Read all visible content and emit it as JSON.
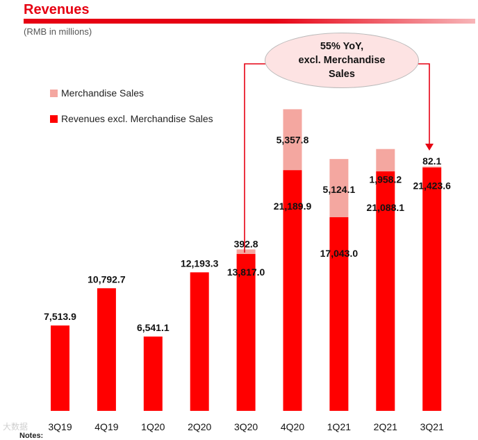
{
  "header": {
    "title": "Revenues",
    "subtitle": "(RMB in millions)"
  },
  "legend": [
    {
      "label": "Merchandise Sales",
      "color": "#f4a7a0"
    },
    {
      "label": "Revenues excl. Merchandise Sales",
      "color": "#ff0000"
    }
  ],
  "callout": {
    "text": "55% YoY,\nexcl. Merchandise\nSales"
  },
  "footer": {
    "notes": "Notes:",
    "watermark": "大数据"
  },
  "chart_data": {
    "type": "bar",
    "stacked": true,
    "title": "Revenues",
    "ylabel": "RMB in millions",
    "categories": [
      "3Q19",
      "4Q19",
      "1Q20",
      "2Q20",
      "3Q20",
      "4Q20",
      "1Q21",
      "2Q21",
      "3Q21"
    ],
    "series": [
      {
        "name": "Revenues excl. Merchandise Sales",
        "color": "#ff0000",
        "values": [
          7513.9,
          10792.7,
          6541.1,
          12193.3,
          13817.0,
          21189.9,
          17043.0,
          21088.1,
          21423.6
        ],
        "labels": [
          "7,513.9",
          "10,792.7",
          "6,541.1",
          "12,193.3",
          "13,817.0",
          "21,189.9",
          "17,043.0",
          "21,088.1",
          "21,423.6"
        ]
      },
      {
        "name": "Merchandise Sales",
        "color": "#f4a7a0",
        "values": [
          null,
          null,
          null,
          null,
          392.8,
          5357.8,
          5124.1,
          1958.2,
          82.1
        ],
        "labels": [
          "",
          "",
          "",
          "",
          "392.8",
          "5,357.8",
          "5,124.1",
          "1,958.2",
          "82.1"
        ]
      }
    ],
    "ylim": [
      0,
      27000
    ],
    "grid": false,
    "legend_position": "top-left"
  }
}
